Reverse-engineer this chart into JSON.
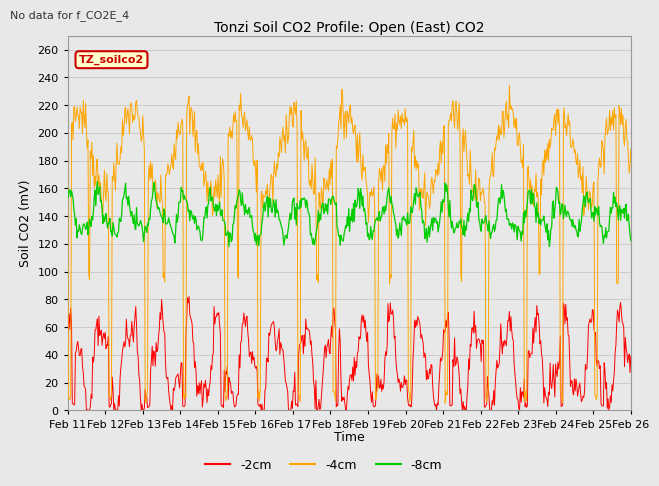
{
  "title": "Tonzi Soil CO2 Profile: Open (East) CO2",
  "subtitle": "No data for f_CO2E_4",
  "ylabel": "Soil CO2 (mV)",
  "xlabel": "Time",
  "legend_label": "TZ_soilco2",
  "line_labels": [
    "-2cm",
    "-4cm",
    "-8cm"
  ],
  "line_colors": [
    "#ff0000",
    "#ffa500",
    "#00cc00"
  ],
  "ylim": [
    0,
    270
  ],
  "yticks": [
    0,
    20,
    40,
    60,
    80,
    100,
    120,
    140,
    160,
    180,
    200,
    220,
    240,
    260
  ],
  "date_labels": [
    "Feb 11",
    "Feb 12",
    "Feb 13",
    "Feb 14",
    "Feb 15",
    "Feb 16",
    "Feb 17",
    "Feb 18",
    "Feb 19",
    "Feb 20",
    "Feb 21",
    "Feb 22",
    "Feb 23",
    "Feb 24",
    "Feb 25",
    "Feb 26"
  ],
  "background_color": "#e8e8e8",
  "grid_color": "#cccccc"
}
